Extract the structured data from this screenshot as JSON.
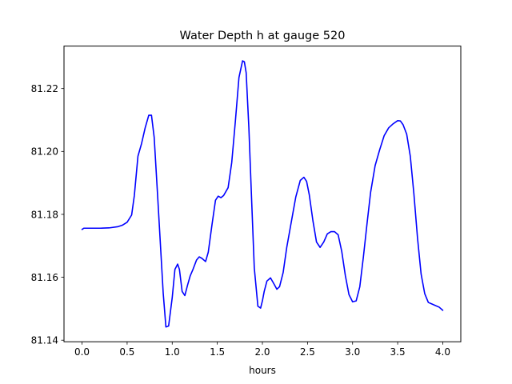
{
  "chart_data": {
    "type": "line",
    "title": "Water Depth h at gauge 520",
    "xlabel": "hours",
    "ylabel": "",
    "xlim": [
      -0.2,
      4.2
    ],
    "ylim": [
      81.1395,
      81.2335
    ],
    "xticks": [
      0.0,
      0.5,
      1.0,
      1.5,
      2.0,
      2.5,
      3.0,
      3.5,
      4.0
    ],
    "xtick_labels": [
      "0.0",
      "0.5",
      "1.0",
      "1.5",
      "2.0",
      "2.5",
      "3.0",
      "3.5",
      "4.0"
    ],
    "yticks": [
      81.14,
      81.16,
      81.18,
      81.2,
      81.22
    ],
    "ytick_labels": [
      "81.14",
      "81.16",
      "81.18",
      "81.20",
      "81.22"
    ],
    "grid": false,
    "legend": "none",
    "series": [
      {
        "color": "#0000ff",
        "x": [
          0.0,
          0.02,
          0.1,
          0.2,
          0.3,
          0.4,
          0.45,
          0.5,
          0.55,
          0.58,
          0.62,
          0.66,
          0.7,
          0.74,
          0.77,
          0.8,
          0.84,
          0.87,
          0.9,
          0.93,
          0.96,
          1.0,
          1.03,
          1.06,
          1.08,
          1.11,
          1.14,
          1.17,
          1.2,
          1.23,
          1.27,
          1.3,
          1.33,
          1.37,
          1.4,
          1.44,
          1.48,
          1.51,
          1.54,
          1.57,
          1.62,
          1.66,
          1.7,
          1.74,
          1.78,
          1.8,
          1.82,
          1.85,
          1.88,
          1.91,
          1.95,
          1.98,
          2.0,
          2.02,
          2.05,
          2.09,
          2.13,
          2.16,
          2.19,
          2.23,
          2.27,
          2.32,
          2.37,
          2.42,
          2.46,
          2.49,
          2.52,
          2.56,
          2.6,
          2.64,
          2.68,
          2.72,
          2.76,
          2.8,
          2.84,
          2.88,
          2.92,
          2.96,
          3.0,
          3.04,
          3.08,
          3.12,
          3.16,
          3.2,
          3.25,
          3.3,
          3.35,
          3.4,
          3.45,
          3.5,
          3.53,
          3.56,
          3.6,
          3.64,
          3.68,
          3.72,
          3.76,
          3.8,
          3.84,
          3.88,
          3.92,
          3.96,
          4.0
        ],
        "y": [
          81.1752,
          81.1756,
          81.1756,
          81.1756,
          81.1757,
          81.1761,
          81.1766,
          81.1775,
          81.1798,
          81.186,
          81.1985,
          81.2025,
          81.2075,
          81.2115,
          81.2115,
          81.2045,
          81.185,
          81.17,
          81.155,
          81.1442,
          81.1445,
          81.1535,
          81.1625,
          81.1642,
          81.1625,
          81.1555,
          81.1542,
          81.1575,
          81.1605,
          81.1625,
          81.1655,
          81.1665,
          81.166,
          81.165,
          81.168,
          81.1765,
          81.1845,
          81.1858,
          81.1853,
          81.186,
          81.1885,
          81.1965,
          81.2095,
          81.2235,
          81.2288,
          81.2285,
          81.225,
          81.2075,
          81.185,
          81.163,
          81.1508,
          81.1502,
          81.1525,
          81.1555,
          81.1588,
          81.1598,
          81.1578,
          81.1562,
          81.157,
          81.1615,
          81.1695,
          81.1775,
          81.1855,
          81.1908,
          81.1918,
          81.1905,
          81.1862,
          81.178,
          81.1712,
          81.1695,
          81.1712,
          81.1738,
          81.1745,
          81.1745,
          81.1735,
          81.1682,
          81.1605,
          81.1545,
          81.1522,
          81.1525,
          81.157,
          81.1665,
          81.177,
          81.187,
          81.1955,
          81.2005,
          81.205,
          81.2075,
          81.2088,
          81.2098,
          81.2097,
          81.2085,
          81.2055,
          81.1985,
          81.1865,
          81.1725,
          81.161,
          81.1548,
          81.152,
          81.1515,
          81.151,
          81.1505,
          81.1495
        ]
      }
    ]
  }
}
